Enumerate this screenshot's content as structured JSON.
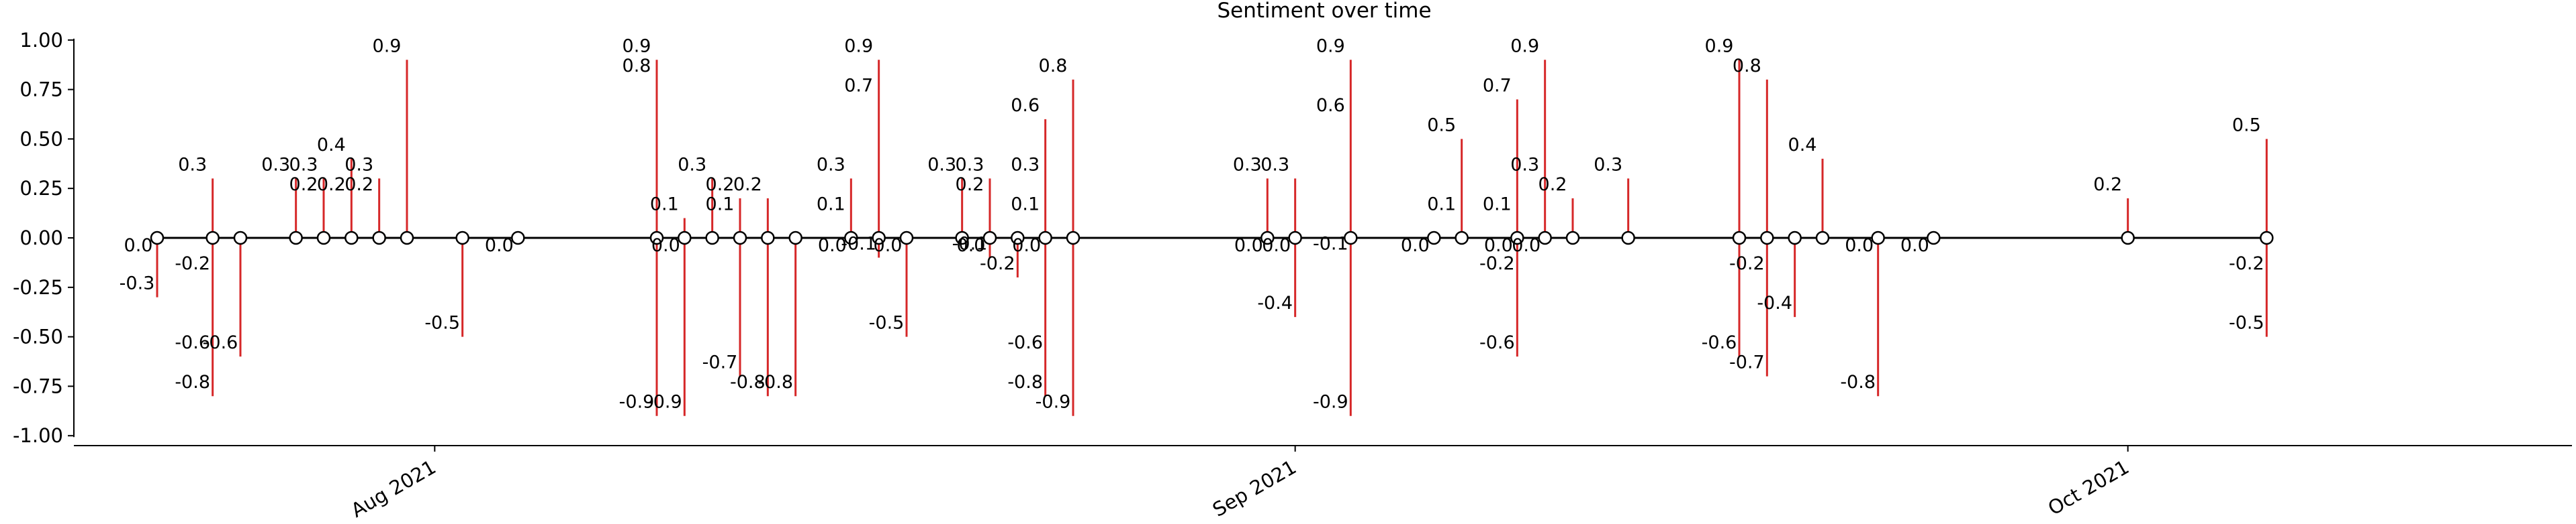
{
  "chart_data": {
    "type": "stem",
    "title": "Sentiment over time",
    "xlabel": "",
    "ylabel": "",
    "x_axis": {
      "type": "date",
      "range": [
        "2021-07-19",
        "2021-10-17"
      ],
      "ticks": [
        {
          "date": "2021-08-01",
          "label": "Aug 2021"
        },
        {
          "date": "2021-09-01",
          "label": "Sep 2021"
        },
        {
          "date": "2021-10-01",
          "label": "Oct 2021"
        }
      ]
    },
    "y_axis": {
      "range": [
        -1.05,
        1.05
      ],
      "ticks": [
        1.0,
        0.75,
        0.5,
        0.25,
        0.0,
        -0.25,
        -0.5,
        -0.75,
        -1.0
      ],
      "tick_labels": [
        "1.00",
        "0.75",
        "0.50",
        "0.25",
        "0.00",
        "-0.25",
        "-0.50",
        "-0.75",
        "-1.00"
      ]
    },
    "grid": false,
    "legend": "none",
    "colors": {
      "stem": "#d62728",
      "baseline": "#000000",
      "marker_fill": "#ffffff",
      "marker_edge": "#000000"
    },
    "points": [
      {
        "date": "2021-07-22",
        "values": [
          0.0,
          -0.3
        ]
      },
      {
        "date": "2021-07-24",
        "values": [
          0.3,
          -0.2,
          -0.6,
          -0.8
        ]
      },
      {
        "date": "2021-07-25",
        "values": [
          -0.6
        ]
      },
      {
        "date": "2021-07-27",
        "values": [
          0.3
        ]
      },
      {
        "date": "2021-07-28",
        "values": [
          0.3,
          0.2
        ]
      },
      {
        "date": "2021-07-29",
        "values": [
          0.4,
          0.2
        ]
      },
      {
        "date": "2021-07-30",
        "values": [
          0.3,
          0.2
        ]
      },
      {
        "date": "2021-07-31",
        "values": [
          0.9
        ]
      },
      {
        "date": "2021-08-02",
        "values": [
          -0.5
        ]
      },
      {
        "date": "2021-08-04",
        "values": [
          0.0
        ]
      },
      {
        "date": "2021-08-09",
        "values": [
          0.9,
          0.8,
          -0.9
        ]
      },
      {
        "date": "2021-08-10",
        "values": [
          0.1,
          0.0,
          -0.9
        ]
      },
      {
        "date": "2021-08-11",
        "values": [
          0.3
        ]
      },
      {
        "date": "2021-08-12",
        "values": [
          0.2,
          0.1,
          -0.7
        ]
      },
      {
        "date": "2021-08-13",
        "values": [
          0.2,
          -0.8
        ]
      },
      {
        "date": "2021-08-14",
        "values": [
          -0.8
        ]
      },
      {
        "date": "2021-08-16",
        "values": [
          0.3,
          0.1,
          0.0
        ]
      },
      {
        "date": "2021-08-17",
        "values": [
          0.9,
          0.7,
          -0.1
        ]
      },
      {
        "date": "2021-08-18",
        "values": [
          0.0,
          -0.5
        ]
      },
      {
        "date": "2021-08-20",
        "values": [
          0.3
        ]
      },
      {
        "date": "2021-08-21",
        "values": [
          0.3,
          0.2,
          0.0,
          -0.1
        ]
      },
      {
        "date": "2021-08-22",
        "values": [
          -0.2
        ]
      },
      {
        "date": "2021-08-23",
        "values": [
          0.6,
          0.3,
          0.1,
          0.0,
          -0.6,
          -0.8
        ]
      },
      {
        "date": "2021-08-24",
        "values": [
          0.8,
          -0.9
        ]
      },
      {
        "date": "2021-08-31",
        "values": [
          0.3,
          0.0
        ]
      },
      {
        "date": "2021-09-01",
        "values": [
          0.3,
          0.0,
          -0.4
        ]
      },
      {
        "date": "2021-09-03",
        "values": [
          0.9,
          0.6,
          -0.1,
          -0.9
        ]
      },
      {
        "date": "2021-09-06",
        "values": [
          0.0
        ]
      },
      {
        "date": "2021-09-07",
        "values": [
          0.5,
          0.1
        ]
      },
      {
        "date": "2021-09-09",
        "values": [
          0.7,
          0.1,
          0.0,
          -0.2,
          -0.6
        ]
      },
      {
        "date": "2021-09-10",
        "values": [
          0.9,
          0.3,
          0.0
        ]
      },
      {
        "date": "2021-09-11",
        "values": [
          0.2
        ]
      },
      {
        "date": "2021-09-13",
        "values": [
          0.3
        ]
      },
      {
        "date": "2021-09-17",
        "values": [
          0.9,
          -0.6
        ]
      },
      {
        "date": "2021-09-18",
        "values": [
          0.8,
          -0.2,
          -0.7
        ]
      },
      {
        "date": "2021-09-19",
        "values": [
          -0.4
        ]
      },
      {
        "date": "2021-09-20",
        "values": [
          0.4
        ]
      },
      {
        "date": "2021-09-22",
        "values": [
          0.0,
          -0.8
        ]
      },
      {
        "date": "2021-09-24",
        "values": [
          0.0
        ]
      },
      {
        "date": "2021-10-01",
        "values": [
          0.2
        ]
      },
      {
        "date": "2021-10-06",
        "values": [
          0.5,
          -0.2,
          -0.5
        ]
      }
    ]
  }
}
